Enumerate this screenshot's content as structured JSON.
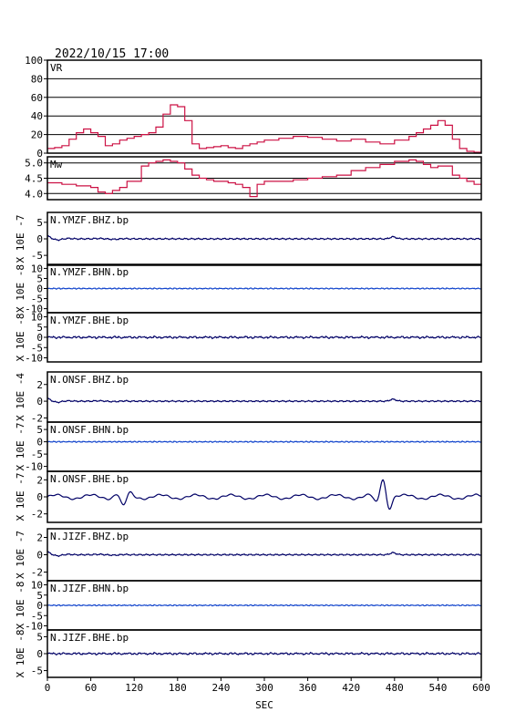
{
  "chart_data": {
    "type": "line",
    "title": "2022/10/15 17:00",
    "xlabel": "SEC",
    "xlim": [
      0,
      600
    ],
    "x_ticks": [
      0,
      60,
      120,
      180,
      240,
      300,
      360,
      420,
      480,
      540,
      600
    ],
    "colors": {
      "axis": "#000000",
      "vr": "#cc1144",
      "dark": "#000066",
      "mid": "#1144cc"
    },
    "panels": [
      {
        "name": "VR",
        "label": "VR",
        "ylim": [
          0,
          100
        ],
        "y_ticks": [
          0,
          20,
          40,
          60,
          80,
          100
        ],
        "grid": true,
        "color": "#cc1144",
        "step": true,
        "x": [
          0,
          10,
          20,
          30,
          40,
          50,
          60,
          70,
          80,
          90,
          100,
          110,
          120,
          130,
          140,
          150,
          160,
          170,
          180,
          190,
          200,
          210,
          220,
          230,
          240,
          250,
          260,
          270,
          280,
          290,
          300,
          320,
          340,
          360,
          380,
          400,
          420,
          440,
          460,
          480,
          500,
          510,
          520,
          530,
          540,
          550,
          560,
          570,
          580,
          590,
          600
        ],
        "y": [
          5,
          6,
          8,
          15,
          22,
          26,
          22,
          18,
          8,
          10,
          14,
          16,
          18,
          20,
          22,
          28,
          42,
          52,
          50,
          35,
          10,
          5,
          6,
          7,
          8,
          6,
          5,
          8,
          10,
          12,
          14,
          16,
          18,
          17,
          15,
          13,
          15,
          12,
          10,
          14,
          18,
          22,
          26,
          30,
          35,
          30,
          15,
          5,
          2,
          1,
          1
        ]
      },
      {
        "name": "Mw",
        "label": "Mw",
        "ylim": [
          3.8,
          5.2
        ],
        "y_ticks": [
          4.0,
          4.5,
          5.0
        ],
        "grid": true,
        "color": "#cc1144",
        "step": true,
        "x": [
          0,
          20,
          40,
          60,
          70,
          80,
          90,
          100,
          110,
          120,
          130,
          140,
          150,
          160,
          170,
          180,
          190,
          200,
          210,
          220,
          230,
          240,
          250,
          260,
          270,
          280,
          290,
          300,
          320,
          340,
          360,
          380,
          400,
          420,
          440,
          460,
          480,
          500,
          510,
          520,
          530,
          540,
          560,
          570,
          580,
          590,
          600
        ],
        "y": [
          4.35,
          4.3,
          4.25,
          4.2,
          4.05,
          4.0,
          4.1,
          4.2,
          4.4,
          4.4,
          4.9,
          5.0,
          5.05,
          5.1,
          5.05,
          5.0,
          4.8,
          4.6,
          4.5,
          4.45,
          4.4,
          4.4,
          4.35,
          4.3,
          4.2,
          3.9,
          4.3,
          4.4,
          4.4,
          4.45,
          4.5,
          4.55,
          4.6,
          4.75,
          4.85,
          4.95,
          5.05,
          5.1,
          5.05,
          4.95,
          4.85,
          4.9,
          4.6,
          4.5,
          4.4,
          4.3,
          4.3
        ]
      },
      {
        "name": "N.YMZF.BHZ.bp",
        "label": "N.YMZF.BHZ.bp",
        "ylim": [
          -8,
          8
        ],
        "y_ticks": [
          -5,
          0,
          5
        ],
        "unit": "X 10E -7",
        "grid": false,
        "color": "#000066",
        "wave": "bhz"
      },
      {
        "name": "N.YMZF.BHN.bp",
        "label": "N.YMZF.BHN.bp",
        "ylim": [
          -12,
          12
        ],
        "y_ticks": [
          -10,
          -5,
          0,
          5,
          10
        ],
        "unit": "X 10E -8",
        "grid": false,
        "color": "#1144cc",
        "wave": "noise"
      },
      {
        "name": "N.YMZF.BHE.bp",
        "label": "N.YMZF.BHE.bp",
        "ylim": [
          -12,
          12
        ],
        "y_ticks": [
          -10,
          -5,
          0,
          5,
          10
        ],
        "unit": "X 10E -8",
        "grid": false,
        "color": "#000066",
        "wave": "noise2"
      },
      {
        "name": "N.ONSF.BHZ.bp",
        "label": "N.ONSF.BHZ.bp",
        "ylim": [
          -2.5,
          3.5
        ],
        "y_ticks": [
          -2,
          0,
          2
        ],
        "unit": "X 10E -4",
        "grid": false,
        "color": "#000066",
        "wave": "bhz"
      },
      {
        "name": "N.ONSF.BHN.bp",
        "label": "N.ONSF.BHN.bp",
        "ylim": [
          -12,
          8
        ],
        "y_ticks": [
          -10,
          -5,
          0,
          5
        ],
        "unit": "X 10E -7",
        "grid": false,
        "color": "#1144cc",
        "wave": "noise"
      },
      {
        "name": "N.ONSF.BHE.bp",
        "label": "N.ONSF.BHE.bp",
        "ylim": [
          -3,
          3
        ],
        "y_ticks": [
          -2,
          0,
          2
        ],
        "unit": "X 10E -7",
        "grid": false,
        "color": "#000066",
        "wave": "onsfbhe"
      },
      {
        "name": "N.JIZF.BHZ.bp",
        "label": "N.JIZF.BHZ.bp",
        "ylim": [
          -3,
          3
        ],
        "y_ticks": [
          -2,
          0,
          2
        ],
        "unit": "X 10E -7",
        "grid": false,
        "color": "#000066",
        "wave": "bhz"
      },
      {
        "name": "N.JIZF.BHN.bp",
        "label": "N.JIZF.BHN.bp",
        "ylim": [
          -12,
          12
        ],
        "y_ticks": [
          -10,
          -5,
          0,
          5,
          10
        ],
        "unit": "X 10E -8",
        "grid": false,
        "color": "#1144cc",
        "wave": "noise"
      },
      {
        "name": "N.JIZF.BHE.bp",
        "label": "N.JIZF.BHE.bp",
        "ylim": [
          -7,
          7
        ],
        "y_ticks": [
          -5,
          0,
          5
        ],
        "unit": "X 10E -8",
        "grid": false,
        "color": "#000066",
        "wave": "noise2"
      }
    ]
  }
}
